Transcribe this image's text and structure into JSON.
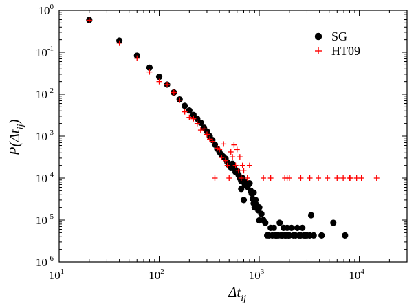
{
  "chart_data": {
    "type": "scatter",
    "xscale": "log",
    "yscale": "log",
    "xlim": [
      10,
      30000
    ],
    "ylim": [
      1e-06,
      1
    ],
    "xlabel": {
      "main": "Δt",
      "sub": "ij"
    },
    "ylabel": {
      "main": "P(Δt",
      "sub": "ij",
      "close": ")"
    },
    "xticks": [
      {
        "value": 10,
        "base": "10",
        "exp": "1"
      },
      {
        "value": 100,
        "base": "10",
        "exp": "2"
      },
      {
        "value": 1000,
        "base": "10",
        "exp": "3"
      },
      {
        "value": 10000,
        "base": "10",
        "exp": "4"
      }
    ],
    "yticks": [
      {
        "value": 1,
        "base": "10",
        "exp": "0"
      },
      {
        "value": 0.1,
        "base": "10",
        "exp": "-1"
      },
      {
        "value": 0.01,
        "base": "10",
        "exp": "-2"
      },
      {
        "value": 0.001,
        "base": "10",
        "exp": "-3"
      },
      {
        "value": 0.0001,
        "base": "10",
        "exp": "-4"
      },
      {
        "value": 1e-05,
        "base": "10",
        "exp": "-5"
      },
      {
        "value": 1e-06,
        "base": "10",
        "exp": "-6"
      }
    ],
    "legend_position": "top-right",
    "series": [
      {
        "name": "SG",
        "marker": "circle",
        "color": "#000000",
        "points": [
          [
            20,
            0.59
          ],
          [
            40,
            0.19
          ],
          [
            60,
            0.083
          ],
          [
            80,
            0.043
          ],
          [
            100,
            0.026
          ],
          [
            120,
            0.017
          ],
          [
            140,
            0.011
          ],
          [
            160,
            0.0075
          ],
          [
            180,
            0.0053
          ],
          [
            200,
            0.0041
          ],
          [
            220,
            0.0032
          ],
          [
            240,
            0.0026
          ],
          [
            260,
            0.0021
          ],
          [
            280,
            0.0016
          ],
          [
            300,
            0.0013
          ],
          [
            320,
            0.001
          ],
          [
            340,
            0.00081
          ],
          [
            360,
            0.00063
          ],
          [
            380,
            0.0005
          ],
          [
            400,
            0.00042
          ],
          [
            420,
            0.00036
          ],
          [
            440,
            0.00032
          ],
          [
            460,
            0.00029
          ],
          [
            480,
            0.00024
          ],
          [
            500,
            0.0002
          ],
          [
            520,
            0.00018
          ],
          [
            540,
            0.00022
          ],
          [
            560,
            0.00017
          ],
          [
            580,
            0.00014
          ],
          [
            600,
            0.00015
          ],
          [
            620,
            0.00012
          ],
          [
            640,
            0.0001
          ],
          [
            660,
            8.5e-05
          ],
          [
            680,
            0.0001
          ],
          [
            700,
            8e-05
          ],
          [
            720,
            6.8e-05
          ],
          [
            740,
            7.8e-05
          ],
          [
            760,
            6.2e-05
          ],
          [
            780,
            7e-05
          ],
          [
            800,
            7.5e-05
          ],
          [
            820,
            5e-05
          ],
          [
            840,
            4.3e-05
          ],
          [
            860,
            3.2e-05
          ],
          [
            880,
            2.5e-05
          ],
          [
            900,
            2e-05
          ],
          [
            920,
            3e-05
          ],
          [
            940,
            2.3e-05
          ],
          [
            960,
            2e-05
          ],
          [
            980,
            1.7e-05
          ],
          [
            1000,
            2e-05
          ],
          [
            1050,
            1.4e-05
          ],
          [
            1100,
            1e-05
          ],
          [
            1150,
            8.6e-06
          ],
          [
            1200,
            4.3e-06
          ],
          [
            1250,
            4.3e-06
          ],
          [
            1300,
            6.5e-06
          ],
          [
            1350,
            4.3e-06
          ],
          [
            1400,
            6.5e-06
          ],
          [
            1450,
            4.3e-06
          ],
          [
            1500,
            4.3e-06
          ],
          [
            1550,
            4.3e-06
          ],
          [
            1600,
            8.6e-06
          ],
          [
            1650,
            4.3e-06
          ],
          [
            1700,
            4.3e-06
          ],
          [
            1750,
            6.5e-06
          ],
          [
            1800,
            4.3e-06
          ],
          [
            1850,
            4.3e-06
          ],
          [
            1900,
            6.5e-06
          ],
          [
            1950,
            4.3e-06
          ],
          [
            2000,
            4.3e-06
          ],
          [
            2100,
            6.5e-06
          ],
          [
            2200,
            4.3e-06
          ],
          [
            2300,
            4.3e-06
          ],
          [
            2400,
            6.5e-06
          ],
          [
            2500,
            4.3e-06
          ],
          [
            2600,
            4.3e-06
          ],
          [
            2700,
            6.5e-06
          ],
          [
            2800,
            4.3e-06
          ],
          [
            2900,
            4.3e-06
          ],
          [
            3000,
            4.3e-06
          ],
          [
            3200,
            4.3e-06
          ],
          [
            3500,
            4.3e-06
          ],
          [
            3300,
            1.3e-05
          ],
          [
            4200,
            4.3e-06
          ],
          [
            5500,
            8.6e-06
          ],
          [
            7200,
            4.3e-06
          ],
          [
            660,
            5.5e-05
          ],
          [
            700,
            3e-05
          ],
          [
            880,
            4.5e-05
          ],
          [
            1000,
            9.8e-06
          ]
        ]
      },
      {
        "name": "HT09",
        "marker": "plus",
        "color": "#ff0000",
        "points": [
          [
            20,
            0.58
          ],
          [
            40,
            0.165
          ],
          [
            60,
            0.072
          ],
          [
            80,
            0.034
          ],
          [
            100,
            0.02
          ],
          [
            120,
            0.017
          ],
          [
            140,
            0.011
          ],
          [
            160,
            0.0072
          ],
          [
            180,
            0.0038
          ],
          [
            200,
            0.0028
          ],
          [
            220,
            0.0026
          ],
          [
            240,
            0.002
          ],
          [
            260,
            0.0014
          ],
          [
            280,
            0.0015
          ],
          [
            300,
            0.0011
          ],
          [
            320,
            0.00085
          ],
          [
            340,
            0.00075
          ],
          [
            360,
            0.0001
          ],
          [
            380,
            0.00052
          ],
          [
            400,
            0.00048
          ],
          [
            420,
            0.00031
          ],
          [
            440,
            0.00065
          ],
          [
            460,
            0.00026
          ],
          [
            480,
            0.0002
          ],
          [
            500,
            0.0001
          ],
          [
            520,
            0.00042
          ],
          [
            540,
            0.00032
          ],
          [
            560,
            0.00062
          ],
          [
            580,
            0.0002
          ],
          [
            600,
            0.00048
          ],
          [
            620,
            0.00015
          ],
          [
            640,
            0.00032
          ],
          [
            660,
            0.0001
          ],
          [
            680,
            0.0002
          ],
          [
            700,
            0.00015
          ],
          [
            760,
            0.0001
          ],
          [
            800,
            0.0002
          ],
          [
            1100,
            0.0001
          ],
          [
            1300,
            0.0001
          ],
          [
            1800,
            0.0001
          ],
          [
            1900,
            0.0001
          ],
          [
            2000,
            0.0001
          ],
          [
            2600,
            0.0001
          ],
          [
            3200,
            0.0001
          ],
          [
            3900,
            0.0001
          ],
          [
            4800,
            0.0001
          ],
          [
            6000,
            0.0001
          ],
          [
            6900,
            0.0001
          ],
          [
            8200,
            0.0001
          ],
          [
            9400,
            0.0001
          ],
          [
            10500,
            0.0001
          ],
          [
            14900,
            0.0001
          ],
          [
            8000,
            0.0001
          ]
        ]
      }
    ]
  }
}
